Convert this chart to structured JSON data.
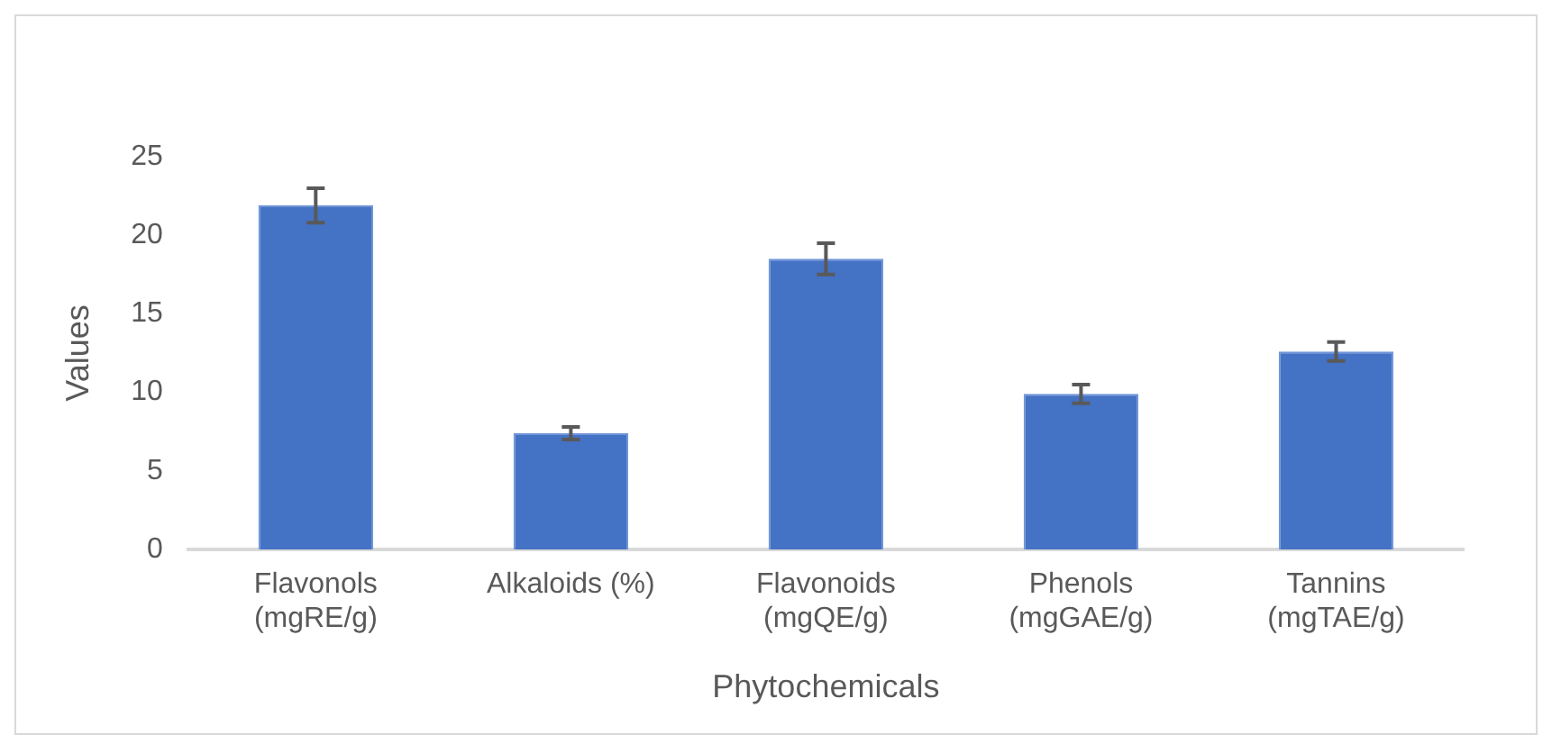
{
  "chart_data": {
    "type": "bar",
    "xlabel": "Phytochemicals",
    "ylabel": "Values",
    "categories": [
      "Flavonols (mgRE/g)",
      "Alkaloids (%)",
      "Flavonoids (mgQE/g)",
      "Phenols (mgGAE/g)",
      "Tannins (mgTAE/g)"
    ],
    "values": [
      21.9,
      7.4,
      18.5,
      9.9,
      12.6
    ],
    "errors": [
      1.1,
      0.4,
      1.0,
      0.6,
      0.6
    ],
    "color": "#4472c4",
    "ylim": [
      0,
      25
    ],
    "yticks": [
      0,
      5,
      10,
      15,
      20,
      25
    ],
    "grid": false,
    "legend": false
  }
}
